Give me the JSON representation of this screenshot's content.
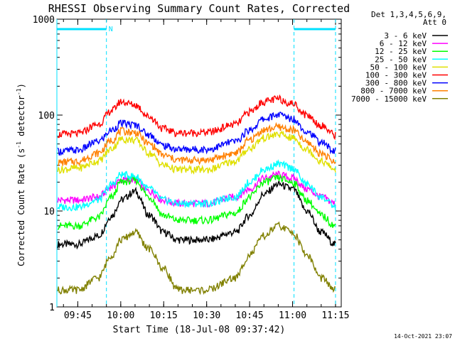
{
  "chart_data": {
    "type": "line",
    "title": "RHESSI Observing Summary Count Rates, Corrected",
    "xlabel": "Start Time (18-Jul-08 09:37:42)",
    "ylabel": "Corrected Count Rate (s",
    "ylabel_sup": "-1",
    "ylabel_mid": " detector",
    "ylabel_close": ")",
    "yscale": "log",
    "ylim": [
      1,
      1000
    ],
    "xlim": [
      "09:37:42",
      "11:17:00"
    ],
    "x_ticks": [
      "09:45",
      "10:00",
      "10:15",
      "10:30",
      "10:45",
      "11:00",
      "11:15"
    ],
    "y_ticks": [
      "1",
      "10",
      "100",
      "1000"
    ],
    "legend_header": [
      "Det 1,3,4,5,6,9,",
      "Att 0"
    ],
    "legend_position": "right",
    "timestamp": "14-Oct-2021 23:07",
    "annotations": [
      {
        "text": "N",
        "x": "09:55"
      }
    ],
    "night_intervals": [
      [
        "09:37:42",
        "09:55:00"
      ],
      [
        "11:00:30",
        "11:15:00"
      ]
    ],
    "series": [
      {
        "name": "3 - 6 keV",
        "color": "#000000",
        "x": [
          "09:38",
          "09:45",
          "09:52",
          "09:57",
          "10:00",
          "10:05",
          "10:10",
          "10:15",
          "10:20",
          "10:30",
          "10:40",
          "10:45",
          "10:50",
          "10:55",
          "11:00",
          "11:05",
          "11:10",
          "11:15"
        ],
        "values": [
          4.5,
          4.5,
          5.5,
          9,
          13,
          16,
          9,
          6,
          5,
          5,
          6,
          9,
          15,
          19,
          17,
          10,
          6,
          4.5
        ]
      },
      {
        "name": "6 - 12 keV",
        "color": "#ff00ff",
        "x": [
          "09:38",
          "09:45",
          "09:52",
          "09:57",
          "10:00",
          "10:05",
          "10:10",
          "10:15",
          "10:20",
          "10:30",
          "10:40",
          "10:45",
          "10:50",
          "10:55",
          "11:00",
          "11:05",
          "11:10",
          "11:15"
        ],
        "values": [
          13,
          13,
          14,
          18,
          21,
          21,
          16,
          13,
          12,
          12,
          14,
          17,
          22,
          24,
          22,
          17,
          14,
          12
        ]
      },
      {
        "name": "12 - 25 keV",
        "color": "#00ff00",
        "x": [
          "09:38",
          "09:45",
          "09:52",
          "09:57",
          "10:00",
          "10:05",
          "10:10",
          "10:15",
          "10:20",
          "10:30",
          "10:40",
          "10:45",
          "10:50",
          "10:55",
          "11:00",
          "11:05",
          "11:10",
          "11:15"
        ],
        "values": [
          7,
          7,
          8.5,
          14,
          20,
          21,
          14,
          9,
          8,
          8,
          9.5,
          14,
          20,
          22,
          20,
          13,
          9,
          7
        ]
      },
      {
        "name": "25 - 50 keV",
        "color": "#00ffff",
        "x": [
          "09:38",
          "09:45",
          "09:52",
          "09:57",
          "10:00",
          "10:05",
          "10:10",
          "10:15",
          "10:20",
          "10:30",
          "10:40",
          "10:45",
          "10:50",
          "10:55",
          "11:00",
          "11:05",
          "11:10",
          "11:15"
        ],
        "values": [
          11,
          11,
          13,
          19,
          24,
          23,
          17,
          13,
          12,
          12,
          14,
          20,
          27,
          31,
          28,
          19,
          14,
          11
        ]
      },
      {
        "name": "50 - 100 keV",
        "color": "#e0e000",
        "x": [
          "09:38",
          "09:45",
          "09:52",
          "09:57",
          "10:00",
          "10:05",
          "10:10",
          "10:15",
          "10:20",
          "10:30",
          "10:40",
          "10:45",
          "10:50",
          "10:55",
          "11:00",
          "11:05",
          "11:10",
          "11:15"
        ],
        "values": [
          27,
          28,
          33,
          45,
          56,
          55,
          40,
          30,
          27,
          27,
          33,
          45,
          58,
          63,
          58,
          44,
          33,
          27
        ]
      },
      {
        "name": "100 - 300 keV",
        "color": "#ff0000",
        "x": [
          "09:38",
          "09:45",
          "09:52",
          "09:57",
          "10:00",
          "10:05",
          "10:10",
          "10:15",
          "10:20",
          "10:30",
          "10:40",
          "10:45",
          "10:50",
          "10:55",
          "11:00",
          "11:05",
          "11:10",
          "11:15"
        ],
        "values": [
          63,
          64,
          80,
          112,
          138,
          128,
          96,
          72,
          65,
          66,
          80,
          108,
          138,
          147,
          132,
          100,
          78,
          62
        ]
      },
      {
        "name": "300 - 800 keV",
        "color": "#0000ff",
        "x": [
          "09:38",
          "09:45",
          "09:52",
          "09:57",
          "10:00",
          "10:05",
          "10:10",
          "10:15",
          "10:20",
          "10:30",
          "10:40",
          "10:45",
          "10:50",
          "10:55",
          "11:00",
          "11:05",
          "11:10",
          "11:15"
        ],
        "values": [
          42,
          43,
          53,
          70,
          82,
          79,
          62,
          48,
          44,
          44,
          53,
          70,
          91,
          101,
          92,
          68,
          52,
          42
        ]
      },
      {
        "name": "800 - 7000 keV",
        "color": "#ff8000",
        "x": [
          "09:38",
          "09:45",
          "09:52",
          "09:57",
          "10:00",
          "10:05",
          "10:10",
          "10:15",
          "10:20",
          "10:30",
          "10:40",
          "10:45",
          "10:50",
          "10:55",
          "11:00",
          "11:05",
          "11:10",
          "11:15"
        ],
        "values": [
          32,
          33,
          40,
          55,
          68,
          66,
          50,
          38,
          34,
          34,
          40,
          55,
          70,
          75,
          70,
          52,
          40,
          32
        ]
      },
      {
        "name": "7000 - 15000 keV",
        "color": "#808000",
        "x": [
          "09:38",
          "09:45",
          "09:52",
          "09:57",
          "10:00",
          "10:05",
          "10:10",
          "10:15",
          "10:20",
          "10:30",
          "10:40",
          "10:45",
          "10:50",
          "10:55",
          "11:00",
          "11:05",
          "11:10",
          "11:15"
        ],
        "values": [
          1.5,
          1.5,
          2,
          3.5,
          5,
          6,
          4,
          2.5,
          1.5,
          1.5,
          2,
          3.5,
          5.5,
          7,
          6,
          3.5,
          2,
          1.5
        ]
      }
    ]
  }
}
